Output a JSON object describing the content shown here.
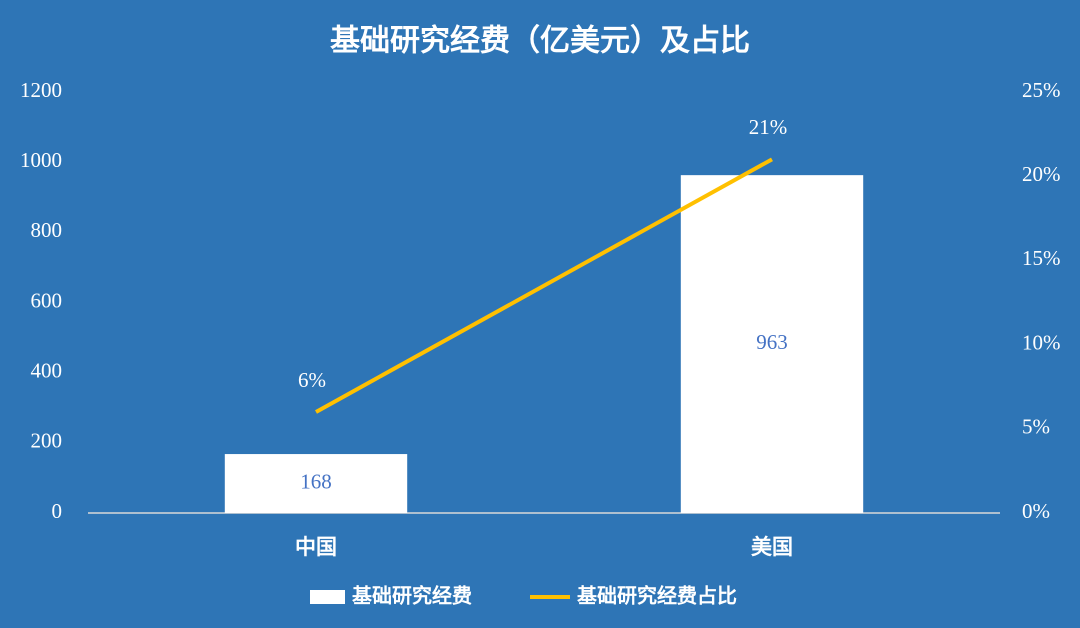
{
  "chart_data": {
    "type": "bar",
    "title": "基础研究经费（亿美元）及占比",
    "categories": [
      "中国",
      "美国"
    ],
    "series": [
      {
        "name": "基础研究经费",
        "type": "bar",
        "color": "#ffffff",
        "values": [
          168,
          963
        ]
      },
      {
        "name": "基础研究经费占比",
        "type": "line",
        "axis": "y2",
        "color": "#ffc000",
        "values": [
          6,
          21
        ],
        "value_labels": [
          "6%",
          "21%"
        ]
      }
    ],
    "ylim": [
      0,
      1200
    ],
    "yticks": [
      0,
      200,
      400,
      600,
      800,
      1000,
      1200
    ],
    "y2lim": [
      0,
      25
    ],
    "y2ticks": [
      {
        "value": 0,
        "label": "0%"
      },
      {
        "value": 5,
        "label": "5%"
      },
      {
        "value": 10,
        "label": "10%"
      },
      {
        "value": 15,
        "label": "15%"
      },
      {
        "value": 20,
        "label": "20%"
      },
      {
        "value": 25,
        "label": "25%"
      }
    ],
    "grid": false,
    "legend": "bottom"
  }
}
